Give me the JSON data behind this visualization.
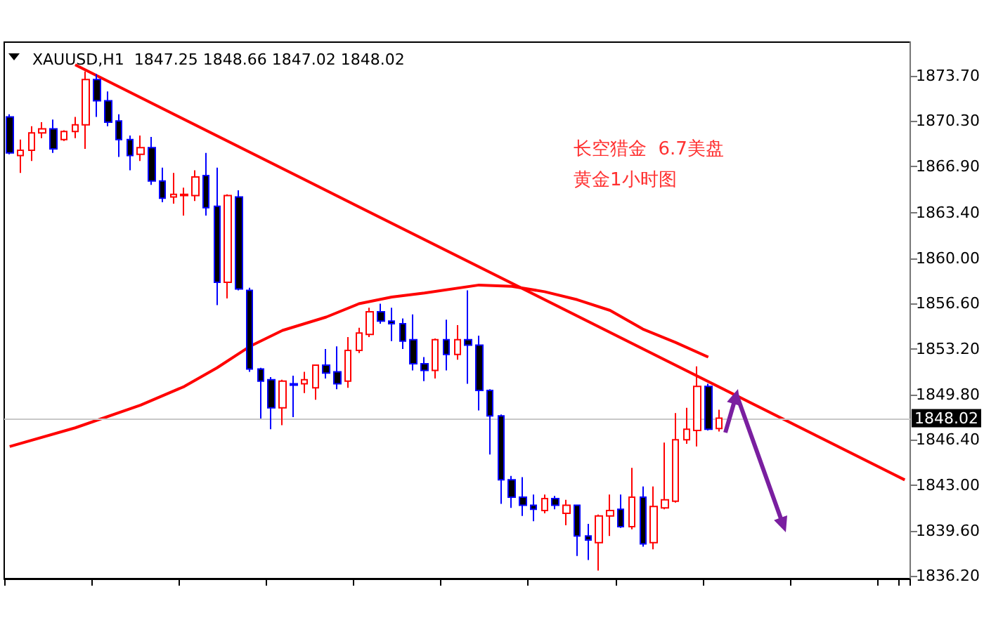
{
  "chart_data": {
    "type": "candlestick",
    "title": "XAUUSD,H1  1847.25 1848.66 1847.02 1848.02",
    "annotations": [
      "长空猎金  6.7美盘",
      "黄金1小时图"
    ],
    "categories": [
      null,
      null,
      null,
      null,
      null,
      null,
      null,
      null,
      null,
      null,
      null,
      null,
      null,
      null,
      null,
      null,
      null,
      null,
      null,
      null,
      null,
      null,
      null,
      null,
      null,
      null,
      null,
      null,
      null,
      null,
      null,
      null,
      null,
      null,
      null,
      null,
      null,
      null,
      null,
      null,
      null,
      null,
      null,
      null,
      null,
      null,
      null,
      null,
      null,
      null,
      null,
      null,
      null,
      null,
      null,
      null,
      null,
      null,
      null,
      null,
      null,
      null,
      null,
      null,
      null,
      null,
      null,
      null,
      null,
      null,
      null,
      null,
      null,
      null,
      null,
      null,
      null,
      null,
      null,
      null,
      null,
      null,
      null
    ],
    "ylim": [
      1836.0,
      1876.2
    ],
    "yticks": [
      {
        "value": 1836.2,
        "label": "1836.20"
      },
      {
        "value": 1839.6,
        "label": "1839.60"
      },
      {
        "value": 1843.0,
        "label": "1843.00"
      },
      {
        "value": 1846.4,
        "label": "1846.40"
      },
      {
        "value": 1849.8,
        "label": "1849.80"
      },
      {
        "value": 1853.2,
        "label": "1853.20"
      },
      {
        "value": 1856.6,
        "label": "1856.60"
      },
      {
        "value": 1860.0,
        "label": "1860.00"
      },
      {
        "value": 1863.4,
        "label": "1863.40"
      },
      {
        "value": 1866.9,
        "label": "1866.90"
      },
      {
        "value": 1870.3,
        "label": "1870.30"
      },
      {
        "value": 1873.7,
        "label": "1873.70"
      }
    ],
    "tick_labels": "y",
    "ref_lines": [
      {
        "axis": "y",
        "value": 1848.02,
        "label": "1848.02",
        "color": "#c8c8c8"
      }
    ],
    "series": [
      {
        "type": "line",
        "color": "#ff0000",
        "values": [
          1845.9,
          null,
          null,
          null,
          null,
          null,
          1847.3,
          null,
          null,
          null,
          null,
          null,
          1849.0,
          null,
          null,
          null,
          1850.4,
          null,
          null,
          1851.8,
          null,
          null,
          1853.4,
          null,
          null,
          1854.6,
          null,
          null,
          null,
          1855.6,
          null,
          null,
          1856.6,
          null,
          null,
          1857.1,
          null,
          null,
          1857.4,
          null,
          null,
          null,
          null,
          1858.0,
          null,
          null,
          1857.9,
          null,
          null,
          1857.5,
          null,
          null,
          1856.9,
          null,
          null,
          1856.1,
          null,
          null,
          1854.7,
          null,
          null,
          1853.7,
          null,
          null,
          1852.6,
          null,
          null,
          null,
          null,
          null,
          null,
          null,
          null,
          null,
          null,
          null,
          null,
          null,
          null,
          null,
          null,
          null,
          null
        ]
      },
      {
        "type": "line",
        "color": "#ff0000",
        "values": [
          null,
          null,
          null,
          null,
          null,
          null,
          1874.5,
          null,
          null,
          null,
          null,
          null,
          null,
          null,
          null,
          null,
          null,
          null,
          null,
          null,
          null,
          null,
          null,
          null,
          null,
          null,
          null,
          null,
          null,
          null,
          null,
          null,
          null,
          null,
          null,
          null,
          null,
          null,
          null,
          null,
          null,
          null,
          null,
          null,
          null,
          null,
          null,
          null,
          null,
          null,
          null,
          null,
          null,
          null,
          null,
          null,
          null,
          null,
          null,
          null,
          null,
          null,
          null,
          null,
          null,
          null,
          null,
          null,
          null,
          null,
          null,
          null,
          null,
          null,
          null,
          null,
          null,
          null,
          null,
          null,
          null,
          null,
          1843.4
        ]
      },
      {
        "colors": [
          "#0000ff",
          "#ff0000",
          "#ff0000",
          "#ff0000",
          "#0000ff",
          "#ff0000",
          "#ff0000",
          "#ff0000",
          "#0000ff",
          "#0000ff",
          "#0000ff",
          "#0000ff",
          "#ff0000",
          "#0000ff",
          "#0000ff",
          "#ff0000",
          "#ff0000",
          "#ff0000",
          "#0000ff",
          "#0000ff",
          "#ff0000",
          "#0000ff",
          "#0000ff",
          "#0000ff",
          "#0000ff",
          "#ff0000",
          "#0000ff",
          "#ff0000",
          "#ff0000",
          "#0000ff",
          "#0000ff",
          "#ff0000",
          "#ff0000",
          "#ff0000",
          "#0000ff",
          "#0000ff",
          "#0000ff",
          "#0000ff",
          "#0000ff",
          "#ff0000",
          "#0000ff",
          "#ff0000",
          "#0000ff",
          "#0000ff",
          "#0000ff",
          "#0000ff",
          "#0000ff",
          "#0000ff",
          "#0000ff",
          "#ff0000",
          "#0000ff",
          "#ff0000",
          "#0000ff",
          "#0000ff",
          "#ff0000",
          "#ff0000",
          "#0000ff",
          "#ff0000",
          "#0000ff",
          "#ff0000",
          "#ff0000",
          "#ff0000",
          "#ff0000",
          "#ff0000",
          "#0000ff",
          "#ff0000",
          null,
          null,
          null,
          null,
          null,
          null,
          null,
          null,
          null,
          null,
          null,
          null,
          null,
          null,
          null,
          null,
          null
        ],
        "ohlc": [
          [
            1870.6,
            1870.8,
            1867.8,
            1867.9
          ],
          [
            1867.7,
            1868.9,
            1866.4,
            1868.1
          ],
          [
            1868.1,
            1869.9,
            1867.3,
            1869.4
          ],
          [
            1869.4,
            1870.2,
            1869.0,
            1869.7
          ],
          [
            1869.7,
            1870.4,
            1867.9,
            1868.2
          ],
          [
            1868.9,
            1869.6,
            1868.8,
            1869.5
          ],
          [
            1869.5,
            1870.6,
            1869.0,
            1870.0
          ],
          [
            1870.0,
            1874.0,
            1868.2,
            1873.4
          ],
          [
            1873.4,
            1873.8,
            1870.6,
            1871.8
          ],
          [
            1871.8,
            1872.5,
            1869.9,
            1870.2
          ],
          [
            1870.3,
            1870.8,
            1867.6,
            1868.9
          ],
          [
            1868.9,
            1869.2,
            1866.6,
            1867.7
          ],
          [
            1867.8,
            1869.2,
            1867.3,
            1868.3
          ],
          [
            1868.3,
            1869.1,
            1865.5,
            1865.8
          ],
          [
            1865.8,
            1866.8,
            1864.2,
            1864.5
          ],
          [
            1864.6,
            1866.4,
            1864.1,
            1864.8
          ],
          [
            1864.7,
            1865.3,
            1863.2,
            1864.8
          ],
          [
            1864.7,
            1866.6,
            1864.3,
            1866.1
          ],
          [
            1866.2,
            1867.9,
            1863.2,
            1863.8
          ],
          [
            1863.9,
            1866.8,
            1856.5,
            1858.2
          ],
          [
            1858.2,
            1864.8,
            1857.0,
            1864.7
          ],
          [
            1864.6,
            1865.1,
            1857.6,
            1857.7
          ],
          [
            1857.6,
            1857.8,
            1851.5,
            1851.7
          ],
          [
            1851.7,
            1851.8,
            1848.0,
            1850.8
          ],
          [
            1850.9,
            1851.1,
            1847.2,
            1848.8
          ],
          [
            1848.8,
            1850.9,
            1847.5,
            1850.8
          ],
          [
            1850.6,
            1851.2,
            1848.1,
            1850.5
          ],
          [
            1850.6,
            1851.5,
            1849.9,
            1850.9
          ],
          [
            1850.3,
            1852.0,
            1849.4,
            1852.0
          ],
          [
            1852.0,
            1853.2,
            1851.0,
            1851.4
          ],
          [
            1851.5,
            1853.4,
            1850.2,
            1850.6
          ],
          [
            1850.8,
            1854.1,
            1850.3,
            1853.1
          ],
          [
            1853.1,
            1854.8,
            1852.9,
            1854.4
          ],
          [
            1854.3,
            1856.3,
            1854.1,
            1856.0
          ],
          [
            1856.0,
            1856.6,
            1855.1,
            1855.3
          ],
          [
            1855.3,
            1856.3,
            1853.8,
            1855.1
          ],
          [
            1855.1,
            1855.5,
            1853.2,
            1853.8
          ],
          [
            1853.9,
            1855.8,
            1851.6,
            1852.1
          ],
          [
            1852.1,
            1852.6,
            1850.8,
            1851.6
          ],
          [
            1851.6,
            1854.0,
            1851.0,
            1853.9
          ],
          [
            1853.9,
            1855.4,
            1851.6,
            1852.8
          ],
          [
            1852.8,
            1855.0,
            1852.4,
            1853.9
          ],
          [
            1853.9,
            1857.6,
            1850.6,
            1853.5
          ],
          [
            1853.5,
            1854.2,
            1848.6,
            1850.1
          ],
          [
            1850.1,
            1850.2,
            1845.3,
            1848.2
          ],
          [
            1848.2,
            1848.3,
            1841.6,
            1843.4
          ],
          [
            1843.4,
            1843.7,
            1841.3,
            1842.1
          ],
          [
            1842.1,
            1843.6,
            1840.7,
            1841.5
          ],
          [
            1841.5,
            1842.3,
            1840.3,
            1841.2
          ],
          [
            1841.1,
            1842.3,
            1840.9,
            1842.0
          ],
          [
            1842.0,
            1842.2,
            1841.2,
            1841.5
          ],
          [
            1840.9,
            1841.9,
            1840.0,
            1841.5
          ],
          [
            1841.5,
            1841.5,
            1837.7,
            1839.2
          ],
          [
            1839.2,
            1840.1,
            1837.4,
            1838.9
          ],
          [
            1838.7,
            1840.8,
            1836.6,
            1840.7
          ],
          [
            1840.7,
            1842.3,
            1839.2,
            1841.1
          ],
          [
            1841.2,
            1842.3,
            1839.8,
            1839.9
          ],
          [
            1839.9,
            1844.3,
            1839.7,
            1842.1
          ],
          [
            1842.1,
            1842.9,
            1838.4,
            1838.6
          ],
          [
            1838.7,
            1842.9,
            1838.2,
            1841.4
          ],
          [
            1841.3,
            1846.2,
            1841.2,
            1841.9
          ],
          [
            1841.8,
            1848.4,
            1841.7,
            1846.4
          ],
          [
            1846.4,
            1848.8,
            1846.1,
            1847.2
          ],
          [
            1847.1,
            1851.9,
            1845.9,
            1850.4
          ],
          [
            1850.4,
            1850.6,
            1847.1,
            1847.2
          ],
          [
            1847.25,
            1848.66,
            1847.02,
            1848.02
          ],
          null,
          null,
          null,
          null,
          null,
          null,
          null,
          null,
          null,
          null,
          null,
          null,
          null,
          null,
          null,
          null,
          null
        ]
      }
    ]
  }
}
